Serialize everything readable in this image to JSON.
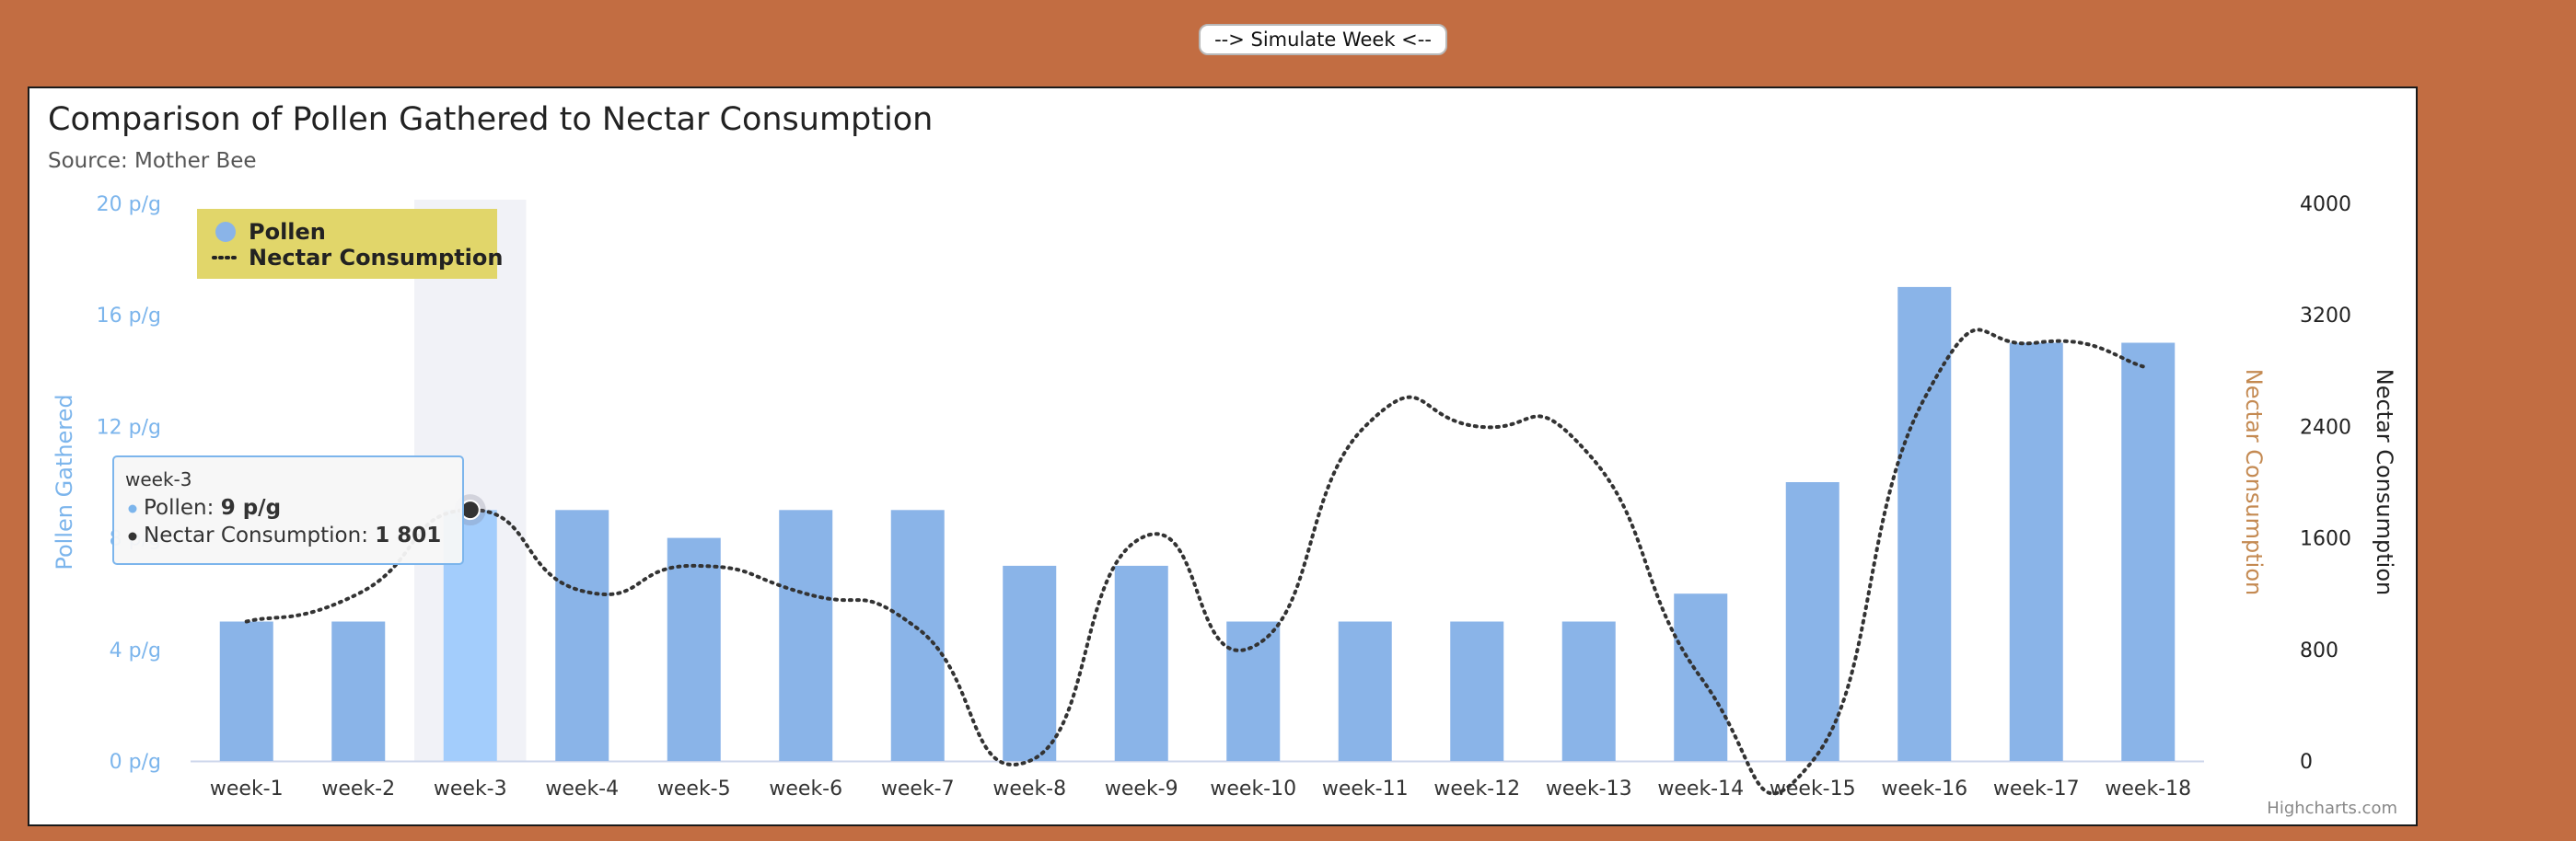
{
  "controls": {
    "simulate_label": "--> Simulate Week <--"
  },
  "chart_data": {
    "type": "bar",
    "title": "Comparison of Pollen Gathered to Nectar Consumption",
    "subtitle": "Source: Mother Bee",
    "credits": "Highcharts.com",
    "categories": [
      "week-1",
      "week-2",
      "week-3",
      "week-4",
      "week-5",
      "week-6",
      "week-7",
      "week-8",
      "week-9",
      "week-10",
      "week-11",
      "week-12",
      "week-13",
      "week-14",
      "week-15",
      "week-16",
      "week-17",
      "week-18"
    ],
    "series": [
      {
        "name": "Pollen",
        "type": "column",
        "axis": "left",
        "values": [
          5,
          5,
          9,
          9,
          8,
          9,
          9,
          7,
          7,
          5,
          5,
          5,
          5,
          6,
          10,
          17,
          15,
          15
        ],
        "color": "#8ab4e8",
        "hover_color": "#a3cdfc"
      },
      {
        "name": "Nectar Consumption",
        "type": "spline",
        "dash": "dotted",
        "axis": "right",
        "values": [
          1000,
          1200,
          1801,
          1220,
          1400,
          1200,
          950,
          0,
          1600,
          820,
          2400,
          2400,
          2200,
          600,
          0,
          2600,
          3000,
          2820
        ],
        "color": "#333333"
      }
    ],
    "y_left": {
      "label": "Pollen Gathered",
      "ticks": [
        "0 p/g",
        "4 p/g",
        "8 p/g",
        "12 p/g",
        "16 p/g",
        "20 p/g"
      ],
      "min": 0,
      "max": 20,
      "color": "#7cb5ec"
    },
    "y_right_inner": {
      "label": "Nectar Consumption",
      "color": "#c48a52"
    },
    "y_right_outer": {
      "label": "Nectar Consumption",
      "ticks": [
        "0",
        "800",
        "1600",
        "2400",
        "3200",
        "4000"
      ],
      "min": 0,
      "max": 4000,
      "color": "#222222"
    },
    "legend": {
      "placement": "top-left",
      "background": "#e1d66a",
      "items": [
        "Pollen",
        "Nectar Consumption"
      ]
    },
    "hovered_index": 2,
    "tooltip": {
      "header": "week-3",
      "rows": [
        {
          "label": "Pollen: ",
          "value": "9 p/g",
          "color": "#7cb5ec"
        },
        {
          "label": "Nectar Consumption: ",
          "value": "1 801",
          "color": "#333333"
        }
      ]
    }
  }
}
